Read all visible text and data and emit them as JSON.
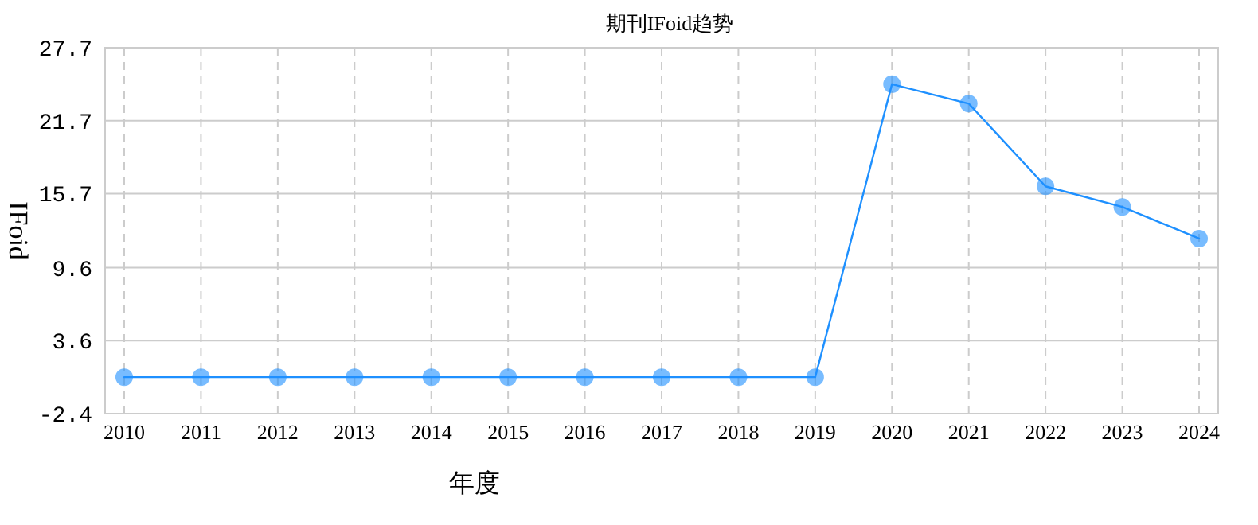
{
  "chart_data": {
    "type": "line",
    "title": "期刊IFoid趋势",
    "xlabel": "年度",
    "ylabel": "IFoid",
    "categories": [
      "2010",
      "2011",
      "2012",
      "2013",
      "2014",
      "2015",
      "2016",
      "2017",
      "2018",
      "2019",
      "2020",
      "2021",
      "2022",
      "2023",
      "2024"
    ],
    "series": [
      {
        "color": "#1e90ff",
        "values": [
          0.6,
          0.6,
          0.6,
          0.6,
          0.6,
          0.6,
          0.6,
          0.6,
          0.6,
          0.6,
          24.7,
          23.1,
          16.3,
          14.6,
          12.0
        ]
      }
    ],
    "ylim": [
      -2.4,
      27.7
    ],
    "yticks": [
      -2.4,
      3.6,
      9.6,
      15.7,
      21.7,
      27.7
    ],
    "grid": true,
    "marker": "circle",
    "line_style": "solid"
  }
}
